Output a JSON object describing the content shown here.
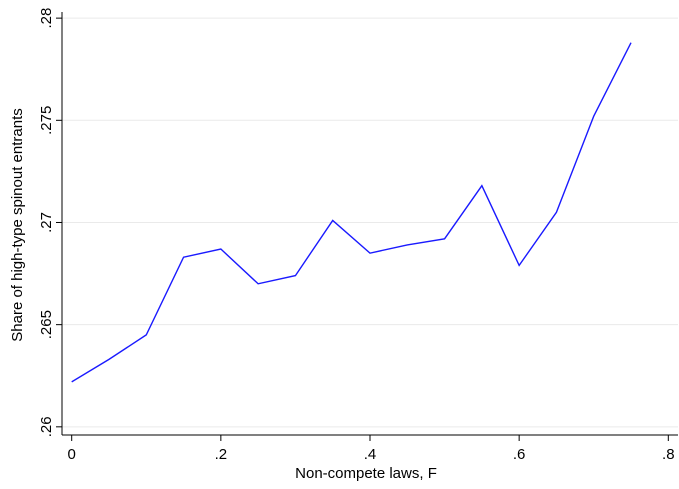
{
  "chart_data": {
    "type": "line",
    "x_label": "Non-compete laws, F",
    "y_label": "Share of high-type spinout entrants",
    "x": [
      0,
      0.05,
      0.1,
      0.15,
      0.2,
      0.25,
      0.3,
      0.35,
      0.4,
      0.45,
      0.5,
      0.55,
      0.6,
      0.65,
      0.7,
      0.75
    ],
    "series": [
      {
        "color": "#1a1aff",
        "values": [
          0.2622,
          0.2633,
          0.2645,
          0.2683,
          0.2687,
          0.267,
          0.2674,
          0.2701,
          0.2685,
          0.2689,
          0.2692,
          0.2718,
          0.2679,
          0.2705,
          0.2752,
          0.2788
        ]
      }
    ],
    "xlim": [
      -0.013,
      0.813
    ],
    "ylim": [
      0.2596,
      0.2803
    ],
    "xticks": [
      0,
      {
        "value": 0.2,
        "label": ".2"
      },
      {
        "value": 0.4,
        "label": ".4"
      },
      {
        "value": 0.6,
        "label": ".6"
      },
      {
        "value": 0.8,
        "label": ".8"
      }
    ],
    "yticks": [
      {
        "value": 0.26,
        "label": ".26"
      },
      {
        "value": 0.265,
        "label": ".265"
      },
      {
        "value": 0.27,
        "label": ".27"
      },
      {
        "value": 0.275,
        "label": ".275"
      },
      {
        "value": 0.28,
        "label": ".28"
      }
    ],
    "grid": true
  }
}
